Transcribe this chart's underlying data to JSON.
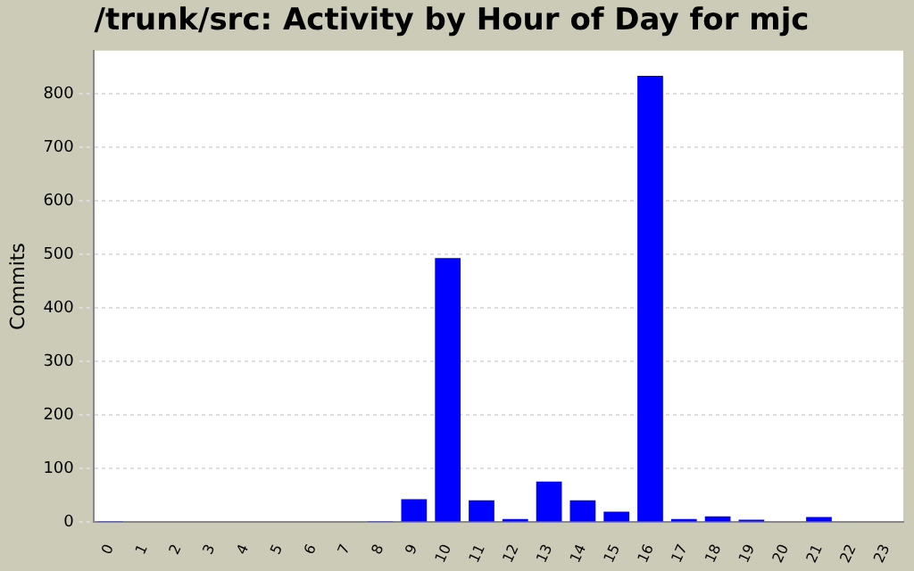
{
  "chart_data": {
    "type": "bar",
    "title": "/trunk/src: Activity by Hour of Day for mjc",
    "ylabel": "Commits",
    "categories": [
      "0",
      "1",
      "2",
      "3",
      "4",
      "5",
      "6",
      "7",
      "8",
      "9",
      "10",
      "11",
      "12",
      "13",
      "14",
      "15",
      "16",
      "17",
      "18",
      "19",
      "20",
      "21",
      "22",
      "23"
    ],
    "values": [
      1,
      0,
      0,
      0,
      0,
      0,
      0,
      0,
      1,
      43,
      493,
      41,
      6,
      76,
      41,
      20,
      833,
      6,
      11,
      5,
      0,
      10,
      0,
      0
    ],
    "color": "#0000ff",
    "ylim": [
      0,
      880
    ],
    "yticks": [
      0,
      100,
      200,
      300,
      400,
      500,
      600,
      700,
      800
    ],
    "grid": "y",
    "legend": false
  }
}
